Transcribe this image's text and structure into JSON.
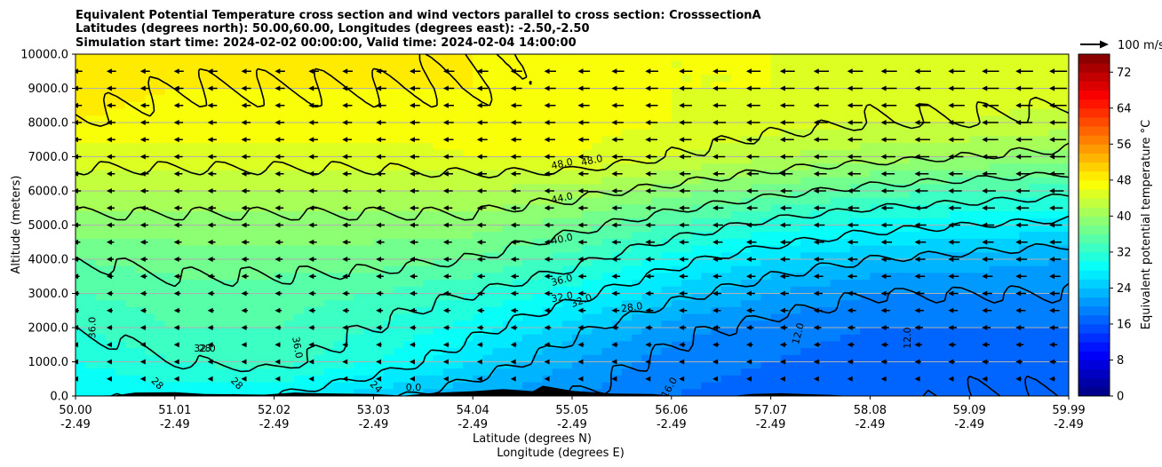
{
  "chart_data": {
    "type": "heatmap",
    "title_lines": [
      "Equivalent Potential Temperature cross section and wind vectors parallel to cross section: CrosssectionA",
      "Latitudes (degrees north): 50.00,60.00, Longitudes (degrees east): -2.50,-2.50",
      "Simulation start time: 2024-02-02 00:00:00, Valid time: 2024-02-04 14:00:00"
    ],
    "xlabel_lat": "Latitude (degrees N)",
    "xlabel_lon": "Longitude (degrees E)",
    "ylabel": "Altitude (meters)",
    "x_ticks_lat": [
      "50.00",
      "51.01",
      "52.02",
      "53.03",
      "54.04",
      "55.05",
      "56.06",
      "57.07",
      "58.08",
      "59.09",
      "59.99"
    ],
    "x_ticks_lon": [
      "-2.49",
      "-2.49",
      "-2.49",
      "-2.49",
      "-2.49",
      "-2.49",
      "-2.49",
      "-2.49",
      "-2.49",
      "-2.49",
      "-2.49"
    ],
    "x_range": [
      50.0,
      59.99
    ],
    "y_ticks": [
      "10000.0",
      "9000.0",
      "8000.0",
      "7000.0",
      "6000.0",
      "5000.0",
      "4000.0",
      "3000.0",
      "2000.0",
      "1000.0",
      "0.0"
    ],
    "ylim": [
      0,
      10000
    ],
    "grid": "horizontal",
    "colorbar": {
      "label": "Equivalent potential temperature $^\\circ$C",
      "ticks": [
        "0",
        "8",
        "16",
        "24",
        "32",
        "40",
        "48",
        "56",
        "64",
        "72"
      ],
      "range": [
        0,
        76
      ],
      "colormap": "jet"
    },
    "quiver_key_label": "100 m/s",
    "contour_levels": [
      12,
      16,
      20,
      24,
      28,
      32,
      36,
      40,
      44,
      48
    ],
    "contour_labels": [
      "48.0",
      "48.0",
      "44.0",
      "40.0",
      "36.0",
      "32.0",
      "32.0",
      "28.0",
      "36.0",
      "36.0",
      "32.0",
      "28",
      "28",
      "28",
      "24",
      "0.0",
      "16.0",
      "12.0",
      "12.0"
    ],
    "theta_e_field": {
      "lat": [
        50.0,
        51.0,
        52.0,
        53.0,
        54.0,
        55.0,
        56.0,
        57.0,
        58.0,
        59.0,
        59.99
      ],
      "alt": [
        0,
        1000,
        2000,
        3000,
        4000,
        5000,
        6000,
        7000,
        8000,
        9000,
        10000
      ],
      "values": [
        [
          28,
          29,
          28,
          25,
          22,
          20,
          18,
          17,
          17,
          16,
          16
        ],
        [
          30,
          32,
          33,
          30,
          26,
          22,
          19,
          18,
          17,
          17,
          17
        ],
        [
          32,
          34,
          34,
          32,
          29,
          25,
          21,
          19,
          18,
          18,
          18
        ],
        [
          34,
          35,
          35,
          34,
          32,
          29,
          25,
          22,
          20,
          20,
          20
        ],
        [
          36,
          37,
          37,
          37,
          36,
          33,
          29,
          26,
          24,
          23,
          22
        ],
        [
          39,
          39,
          39,
          39,
          39,
          37,
          34,
          31,
          29,
          28,
          27
        ],
        [
          42,
          42,
          42,
          42,
          42,
          41,
          39,
          37,
          35,
          34,
          33
        ],
        [
          45,
          45,
          45,
          45,
          46,
          46,
          44,
          42,
          41,
          40,
          39
        ],
        [
          48,
          47,
          47,
          47,
          47,
          47,
          46,
          45,
          44,
          44,
          43
        ],
        [
          49,
          48,
          48,
          48,
          48,
          47,
          46,
          46,
          45,
          45,
          45
        ],
        [
          50,
          49,
          49,
          49,
          48,
          47,
          46,
          46,
          46,
          46,
          46
        ]
      ]
    },
    "wind_u_ms": {
      "lat": [
        50.0,
        52.5,
        55.0,
        57.5,
        59.99
      ],
      "alt": [
        500,
        2500,
        5000,
        7500,
        9500
      ],
      "values": [
        [
          2,
          2,
          2,
          3,
          4
        ],
        [
          4,
          5,
          6,
          7,
          9
        ],
        [
          6,
          7,
          8,
          10,
          12
        ],
        [
          7,
          8,
          10,
          14,
          17
        ],
        [
          8,
          9,
          11,
          15,
          18
        ]
      ]
    },
    "terrain_heights_m": [
      [
        50.0,
        0
      ],
      [
        50.4,
        20
      ],
      [
        50.6,
        100
      ],
      [
        51.0,
        110
      ],
      [
        51.3,
        60
      ],
      [
        51.9,
        40
      ],
      [
        52.2,
        100
      ],
      [
        52.4,
        80
      ],
      [
        53.0,
        60
      ],
      [
        53.3,
        10
      ],
      [
        53.6,
        90
      ],
      [
        54.0,
        140
      ],
      [
        54.3,
        200
      ],
      [
        54.6,
        140
      ],
      [
        54.7,
        300
      ],
      [
        55.0,
        150
      ],
      [
        55.4,
        70
      ],
      [
        55.8,
        60
      ],
      [
        56.06,
        0
      ],
      [
        56.6,
        0
      ],
      [
        56.8,
        60
      ],
      [
        57.1,
        80
      ],
      [
        57.6,
        30
      ],
      [
        57.8,
        0
      ],
      [
        59.99,
        0
      ]
    ]
  }
}
